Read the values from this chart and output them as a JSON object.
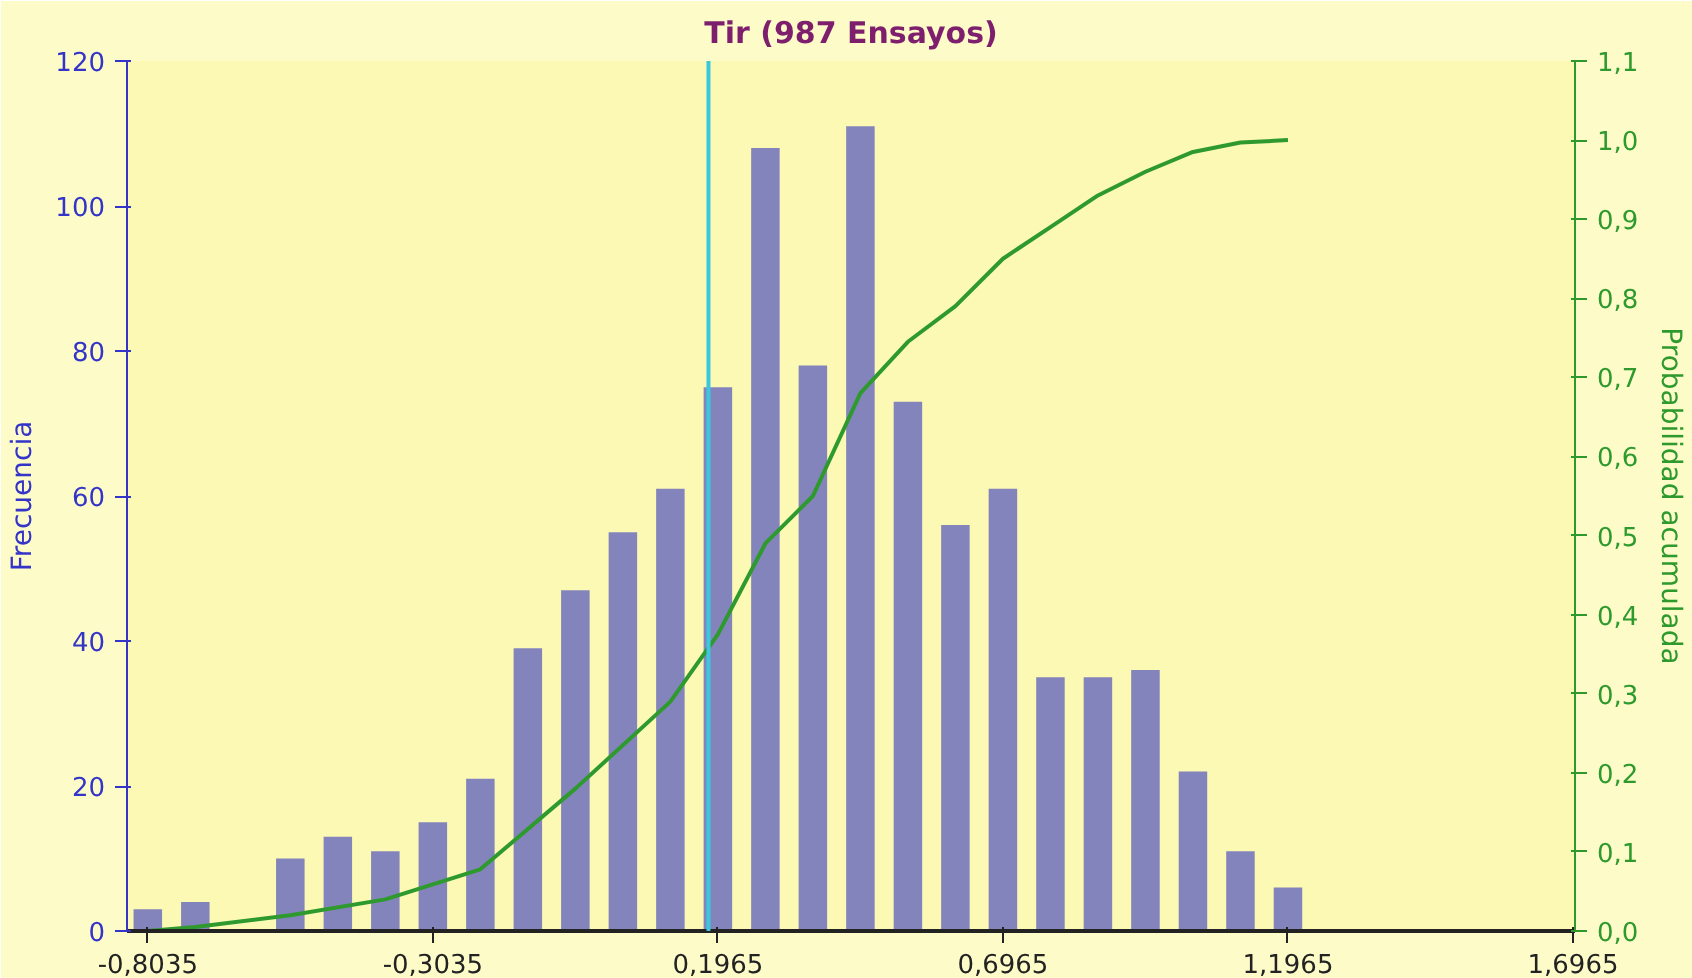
{
  "chart_data": {
    "type": "histogram",
    "title": "Tir (987 Ensayos)",
    "ylabel": "Frecuencia",
    "y2label": "Probabilidad acumulada",
    "bins": [
      -0.8452,
      -0.7618,
      -0.6785,
      -0.5952,
      -0.5118,
      -0.4285,
      -0.3452,
      -0.2618,
      -0.1785,
      -0.0952,
      -0.0118,
      0.0715,
      0.1548,
      0.2382,
      0.3215,
      0.4048,
      0.4882,
      0.5715,
      0.6548,
      0.7382,
      0.8215,
      0.9048,
      0.9882,
      1.0715,
      1.1548,
      1.2382
    ],
    "series": [
      {
        "color": "#8484bc",
        "values": [
          3,
          4,
          0,
          10,
          13,
          11,
          15,
          21,
          39,
          47,
          55,
          61,
          75,
          108,
          78,
          111,
          73,
          56,
          61,
          35,
          35,
          36,
          22,
          11,
          6
        ]
      },
      {
        "type": "line",
        "axis": "y2",
        "color": "#2e9a2e",
        "x": [
          -0.8035,
          -0.7202,
          -0.5535,
          -0.3868,
          -0.2202,
          -0.0535,
          0.1132,
          0.1965,
          0.2798,
          0.3632,
          0.4465,
          0.5298,
          0.6132,
          0.6965,
          0.7798,
          0.8632,
          0.9465,
          1.0298,
          1.1132,
          1.1965
        ],
        "values": [
          0.0,
          0.005,
          0.02,
          0.04,
          0.078,
          0.18,
          0.29,
          0.375,
          0.49,
          0.55,
          0.68,
          0.745,
          0.79,
          0.85,
          0.89,
          0.93,
          0.96,
          0.985,
          0.997,
          1.0
        ]
      }
    ],
    "xlim": [
      -0.84,
      1.7
    ],
    "xticks": [
      {
        "value": -0.8035,
        "label": "-0,8035"
      },
      {
        "value": -0.3035,
        "label": "-0,3035"
      },
      {
        "value": 0.1965,
        "label": "0,1965"
      },
      {
        "value": 0.6965,
        "label": "0,6965"
      },
      {
        "value": 1.1965,
        "label": "1,1965"
      },
      {
        "value": 1.6965,
        "label": "1,6965"
      }
    ],
    "ylim": [
      0,
      120
    ],
    "yticks": [
      0,
      20,
      40,
      60,
      80,
      100,
      120
    ],
    "y2lim": [
      0,
      1.1
    ],
    "y2ticks": [
      {
        "value": 0,
        "label": "0,0"
      },
      {
        "value": 0.1,
        "label": "0,1"
      },
      {
        "value": 0.2,
        "label": "0,2"
      },
      {
        "value": 0.3,
        "label": "0,3"
      },
      {
        "value": 0.4,
        "label": "0,4"
      },
      {
        "value": 0.5,
        "label": "0,5"
      },
      {
        "value": 0.6,
        "label": "0,6"
      },
      {
        "value": 0.7,
        "label": "0,7"
      },
      {
        "value": 0.8,
        "label": "0,8"
      },
      {
        "value": 0.9,
        "label": "0,9"
      },
      {
        "value": 1.0,
        "label": "1,0"
      },
      {
        "value": 1.1,
        "label": "1,1"
      }
    ],
    "ref_lines": [
      {
        "axis": "x",
        "value": 0.18,
        "color": "#3cc8dc"
      }
    ],
    "grid": false,
    "marker": "none",
    "line_style": "solid"
  }
}
